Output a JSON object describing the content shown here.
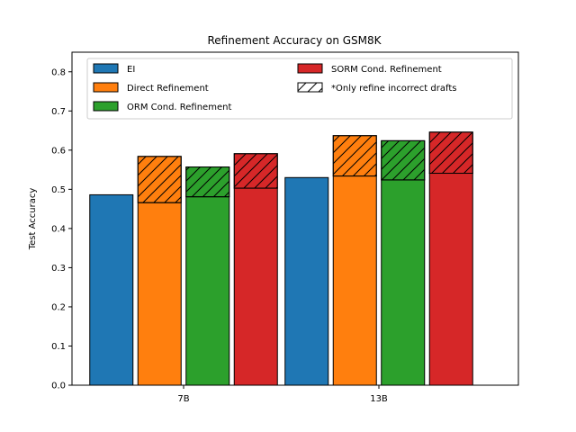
{
  "chart_data": {
    "type": "bar",
    "title": "Refinement Accuracy on GSM8K",
    "xlabel": "",
    "ylabel": "Test Accuracy",
    "ylim": [
      0,
      0.85
    ],
    "yticks": [
      "0.0",
      "0.1",
      "0.2",
      "0.3",
      "0.4",
      "0.5",
      "0.6",
      "0.7",
      "0.8"
    ],
    "categories": [
      "7B",
      "13B"
    ],
    "series": [
      {
        "name": "EI",
        "color": "#1f77b4",
        "values": [
          0.486,
          0.53
        ],
        "refine_only_incorrect": [
          null,
          null
        ]
      },
      {
        "name": "Direct Refinement",
        "color": "#ff7f0e",
        "values": [
          0.466,
          0.534
        ],
        "refine_only_incorrect": [
          0.584,
          0.637
        ]
      },
      {
        "name": "ORM Cond. Refinement",
        "color": "#2ca02c",
        "values": [
          0.481,
          0.524
        ],
        "refine_only_incorrect": [
          0.557,
          0.624
        ]
      },
      {
        "name": "SORM Cond. Refinement",
        "color": "#d62728",
        "values": [
          0.503,
          0.541
        ],
        "refine_only_incorrect": [
          0.591,
          0.646
        ]
      }
    ],
    "hatch_legend_label": "*Only refine incorrect drafts",
    "grid": false,
    "legend_position": "top"
  }
}
